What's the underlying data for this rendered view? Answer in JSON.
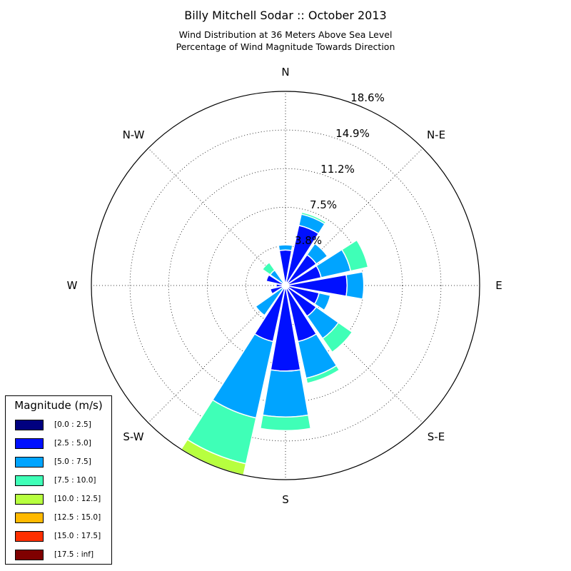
{
  "chart_data": {
    "type": "windrose",
    "title": "Billy Mitchell Sodar :: October 2013",
    "subtitle_lines": [
      "Wind Distribution at 36 Meters Above Sea Level",
      "Percentage of Wind Magnitude Towards Direction"
    ],
    "direction_labels": [
      "N",
      "N-E",
      "E",
      "S-E",
      "S",
      "S-W",
      "W",
      "N-W"
    ],
    "ring_values": [
      3.8,
      7.5,
      11.2,
      14.9,
      18.6
    ],
    "ring_labels": [
      "3.8%",
      "7.5%",
      "11.2%",
      "14.9%",
      "18.6%"
    ],
    "rmax": 18.6,
    "grid": true,
    "legend_title": "Magnitude (m/s)",
    "legend_placement": "lower-left",
    "bins": [
      {
        "label": "[0.0 : 2.5]",
        "color": "#00007f"
      },
      {
        "label": "[2.5 : 5.0]",
        "color": "#0010ff"
      },
      {
        "label": "[5.0 : 7.5]",
        "color": "#00a4ff"
      },
      {
        "label": "[7.5 : 10.0]",
        "color": "#3fffb7"
      },
      {
        "label": "[10.0 : 12.5]",
        "color": "#b7ff3f"
      },
      {
        "label": "[12.5 : 15.0]",
        "color": "#ffb900"
      },
      {
        "label": "[15.0 : 17.5]",
        "color": "#ff3000"
      },
      {
        "label": "[17.5 : inf]",
        "color": "#7f0000"
      }
    ],
    "sectors": [
      {
        "direction_deg": 0,
        "cumulative": [
          0.3,
          3.4,
          3.9,
          3.9,
          3.9,
          3.9,
          3.9,
          3.9
        ]
      },
      {
        "direction_deg": 22.5,
        "cumulative": [
          0.3,
          5.9,
          7.0,
          7.2,
          7.2,
          7.2,
          7.2,
          7.2
        ]
      },
      {
        "direction_deg": 45,
        "cumulative": [
          0.3,
          3.6,
          4.9,
          4.9,
          4.9,
          4.9,
          4.9,
          4.9
        ]
      },
      {
        "direction_deg": 67.5,
        "cumulative": [
          0.3,
          3.5,
          6.4,
          8.1,
          8.1,
          8.1,
          8.1,
          8.1
        ]
      },
      {
        "direction_deg": 90,
        "cumulative": [
          0.3,
          5.9,
          7.5,
          7.5,
          7.5,
          7.5,
          7.5,
          7.5
        ]
      },
      {
        "direction_deg": 112.5,
        "cumulative": [
          0.3,
          3.3,
          4.4,
          4.4,
          4.4,
          4.4,
          4.4,
          4.4
        ]
      },
      {
        "direction_deg": 135,
        "cumulative": [
          0.3,
          3.6,
          6.2,
          7.8,
          7.8,
          7.8,
          7.8,
          7.8
        ]
      },
      {
        "direction_deg": 157.5,
        "cumulative": [
          0.3,
          5.5,
          9.1,
          9.6,
          9.6,
          9.6,
          9.6,
          9.6
        ]
      },
      {
        "direction_deg": 180,
        "cumulative": [
          0.3,
          8.2,
          12.6,
          13.9,
          13.9,
          13.9,
          13.9,
          13.9
        ]
      },
      {
        "direction_deg": 202.5,
        "cumulative": [
          0.3,
          5.5,
          13.0,
          17.5,
          18.6,
          18.6,
          18.6,
          18.6
        ]
      },
      {
        "direction_deg": 225,
        "cumulative": [
          0.3,
          0.3,
          3.5,
          3.5,
          3.5,
          3.5,
          3.5,
          3.5
        ]
      },
      {
        "direction_deg": 247.5,
        "cumulative": [
          0.3,
          1.5,
          1.5,
          1.5,
          1.5,
          1.5,
          1.5,
          1.5
        ]
      },
      {
        "direction_deg": 270,
        "cumulative": [
          0.3,
          0.9,
          0.9,
          0.9,
          0.9,
          0.9,
          0.9,
          0.9
        ]
      },
      {
        "direction_deg": 292.5,
        "cumulative": [
          0.3,
          1.9,
          1.9,
          1.9,
          1.9,
          1.9,
          1.9,
          1.9
        ]
      },
      {
        "direction_deg": 315,
        "cumulative": [
          0.3,
          0.3,
          1.8,
          2.7,
          2.7,
          2.7,
          2.7,
          2.7
        ]
      },
      {
        "direction_deg": 337.5,
        "cumulative": [
          0.3,
          0.3,
          0.3,
          0.3,
          0.3,
          0.3,
          0.3,
          0.3
        ]
      }
    ]
  }
}
